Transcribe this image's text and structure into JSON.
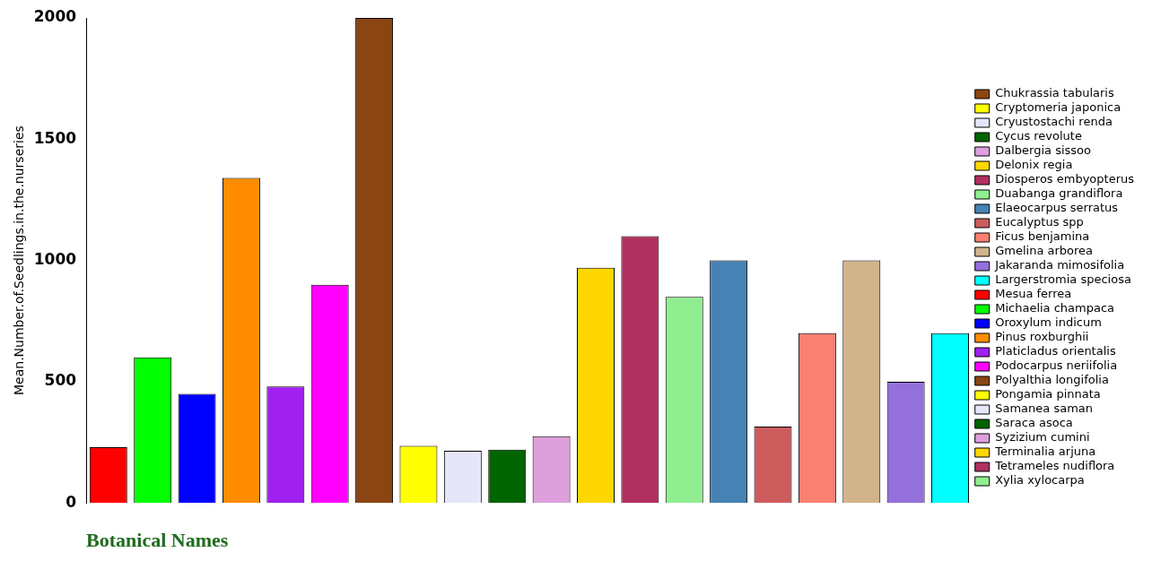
{
  "chart_data": {
    "type": "bar",
    "xlabel": "Botanical Names",
    "ylabel": "Mean.Number.of.Seedlings.in.the.nurseries",
    "categories": [
      null,
      null,
      null,
      null,
      null,
      null,
      null,
      null,
      null,
      null,
      null,
      null,
      null,
      null,
      null,
      null,
      null,
      null,
      null,
      null
    ],
    "ylim": [
      0,
      2000
    ],
    "yticks": [
      0,
      500,
      1000,
      1500,
      2000
    ],
    "grid": false,
    "legend": "right",
    "stacked": true,
    "series": [
      {
        "color": "#ff0000",
        "values": [
          230,
          null,
          null,
          null,
          null,
          null,
          null,
          null,
          null,
          null,
          null,
          null,
          null,
          null,
          null,
          null,
          null,
          null,
          null,
          null
        ]
      },
      {
        "color": "#00ff00",
        "values": [
          null,
          600,
          null,
          null,
          null,
          null,
          null,
          null,
          null,
          null,
          null,
          null,
          null,
          null,
          null,
          null,
          null,
          null,
          null,
          null
        ]
      },
      {
        "color": "#0000ff",
        "values": [
          null,
          null,
          450,
          null,
          null,
          null,
          null,
          null,
          null,
          null,
          null,
          null,
          null,
          null,
          null,
          null,
          null,
          null,
          null,
          null
        ]
      },
      {
        "color": "#ff8c00",
        "values": [
          null,
          null,
          null,
          1340,
          null,
          null,
          null,
          null,
          null,
          null,
          null,
          null,
          null,
          null,
          null,
          null,
          null,
          null,
          null,
          null
        ]
      },
      {
        "color": "#a020f0",
        "values": [
          null,
          null,
          null,
          null,
          480,
          null,
          null,
          null,
          null,
          null,
          null,
          null,
          null,
          null,
          null,
          null,
          null,
          null,
          null,
          null
        ]
      },
      {
        "color": "#ff00ff",
        "values": [
          null,
          null,
          null,
          null,
          null,
          900,
          null,
          null,
          null,
          null,
          null,
          null,
          null,
          null,
          null,
          null,
          null,
          null,
          null,
          null
        ]
      },
      {
        "name": "Chukrassia tabularis",
        "color": "#8b4513",
        "values": [
          null,
          null,
          null,
          null,
          null,
          null,
          2000,
          null,
          null,
          null,
          null,
          null,
          null,
          null,
          null,
          null,
          null,
          null,
          null,
          null
        ]
      },
      {
        "name": "Cryptomeria japonica",
        "color": "#ffff00",
        "values": [
          null,
          null,
          null,
          null,
          null,
          null,
          null,
          235,
          null,
          null,
          null,
          null,
          null,
          null,
          null,
          null,
          null,
          null,
          null,
          null
        ]
      },
      {
        "name": "Cryustostachi renda",
        "color": "#e6e6fa",
        "values": [
          null,
          null,
          null,
          null,
          null,
          null,
          null,
          null,
          215,
          null,
          null,
          null,
          null,
          null,
          null,
          null,
          null,
          null,
          null,
          null
        ]
      },
      {
        "name": "Cycus revolute",
        "color": "#006400",
        "values": [
          null,
          null,
          null,
          null,
          null,
          null,
          null,
          null,
          null,
          220,
          null,
          null,
          null,
          null,
          null,
          null,
          null,
          null,
          null,
          null
        ]
      },
      {
        "name": "Dalbergia sissoo",
        "color": "#dda0dd",
        "values": [
          null,
          null,
          null,
          null,
          null,
          null,
          null,
          null,
          null,
          null,
          275,
          null,
          null,
          null,
          null,
          null,
          null,
          null,
          null,
          null
        ]
      },
      {
        "name": "Delonix regia",
        "color": "#ffd700",
        "values": [
          null,
          null,
          null,
          null,
          null,
          null,
          null,
          null,
          null,
          null,
          null,
          970,
          null,
          null,
          null,
          null,
          null,
          null,
          null,
          null
        ]
      },
      {
        "name": "Diosperos embyopterus",
        "color": "#b03060",
        "values": [
          null,
          null,
          null,
          null,
          null,
          null,
          null,
          null,
          null,
          null,
          null,
          null,
          1100,
          null,
          null,
          null,
          null,
          null,
          null,
          null
        ]
      },
      {
        "name": "Duabanga grandiflora",
        "color": "#90ee90",
        "values": [
          null,
          null,
          null,
          null,
          null,
          null,
          null,
          null,
          null,
          null,
          null,
          null,
          null,
          850,
          null,
          null,
          null,
          null,
          null,
          null
        ]
      },
      {
        "name": "Elaeocarpus serratus",
        "color": "#4682b4",
        "values": [
          null,
          null,
          null,
          null,
          null,
          null,
          null,
          null,
          null,
          null,
          null,
          null,
          null,
          null,
          1000,
          null,
          null,
          null,
          null,
          null
        ]
      },
      {
        "name": "Eucalyptus spp",
        "color": "#cd5c5c",
        "values": [
          null,
          null,
          null,
          null,
          null,
          null,
          null,
          null,
          null,
          null,
          null,
          null,
          null,
          null,
          null,
          315,
          null,
          null,
          null,
          null
        ]
      },
      {
        "name": "Ficus benjamina",
        "color": "#fa8072",
        "values": [
          null,
          null,
          null,
          null,
          null,
          null,
          null,
          null,
          null,
          null,
          null,
          null,
          null,
          null,
          null,
          null,
          700,
          null,
          null,
          null
        ]
      },
      {
        "name": "Gmelina arborea",
        "color": "#d2b48c",
        "values": [
          null,
          null,
          null,
          null,
          null,
          null,
          null,
          null,
          null,
          null,
          null,
          null,
          null,
          null,
          null,
          null,
          null,
          1000,
          null,
          null
        ]
      },
      {
        "name": "Jakaranda mimosifolia",
        "color": "#9370db",
        "values": [
          null,
          null,
          null,
          null,
          null,
          null,
          null,
          null,
          null,
          null,
          null,
          null,
          null,
          null,
          null,
          null,
          null,
          null,
          500,
          null
        ]
      },
      {
        "name": "Largerstromia speciosa",
        "color": "#00ffff",
        "values": [
          null,
          null,
          null,
          null,
          null,
          null,
          null,
          null,
          null,
          null,
          null,
          null,
          null,
          null,
          null,
          null,
          null,
          null,
          null,
          700
        ]
      },
      {
        "name": "Mesua ferrea",
        "color": "#ff0000",
        "values": [
          null,
          null,
          null,
          null,
          null,
          null,
          null,
          null,
          null,
          null,
          null,
          null,
          null,
          null,
          null,
          null,
          null,
          null,
          null,
          null
        ]
      },
      {
        "name": "Michaelia champaca",
        "color": "#00ff00",
        "values": [
          null,
          null,
          null,
          null,
          null,
          null,
          null,
          null,
          null,
          null,
          null,
          null,
          null,
          null,
          null,
          null,
          null,
          null,
          null,
          null
        ]
      },
      {
        "name": "Oroxylum indicum",
        "color": "#0000ff",
        "values": [
          null,
          null,
          null,
          null,
          null,
          null,
          null,
          null,
          null,
          null,
          null,
          null,
          null,
          null,
          null,
          null,
          null,
          null,
          null,
          null
        ]
      },
      {
        "name": "Pinus roxburghii",
        "color": "#ff8c00",
        "values": [
          null,
          null,
          null,
          null,
          null,
          null,
          null,
          null,
          null,
          null,
          null,
          null,
          null,
          null,
          null,
          null,
          null,
          null,
          null,
          null
        ]
      },
      {
        "name": "Platicladus orientalis",
        "color": "#a020f0",
        "values": [
          null,
          null,
          null,
          null,
          null,
          null,
          null,
          null,
          null,
          null,
          null,
          null,
          null,
          null,
          null,
          null,
          null,
          null,
          null,
          null
        ]
      },
      {
        "name": "Podocarpus neriifolia",
        "color": "#ff00ff",
        "values": [
          null,
          null,
          null,
          null,
          null,
          null,
          null,
          null,
          null,
          null,
          null,
          null,
          null,
          null,
          null,
          null,
          null,
          null,
          null,
          null
        ]
      },
      {
        "name": "Polyalthia longifolia",
        "color": "#8b4513",
        "values": [
          null,
          null,
          null,
          null,
          null,
          null,
          null,
          null,
          null,
          null,
          null,
          null,
          null,
          null,
          null,
          null,
          null,
          null,
          null,
          null
        ]
      },
      {
        "name": "Pongamia pinnata",
        "color": "#ffff00",
        "values": [
          null,
          null,
          null,
          null,
          null,
          null,
          null,
          null,
          null,
          null,
          null,
          null,
          null,
          null,
          null,
          null,
          null,
          null,
          null,
          null
        ]
      },
      {
        "name": "Samanea saman",
        "color": "#e6e6fa",
        "values": [
          null,
          null,
          null,
          null,
          null,
          null,
          null,
          null,
          null,
          null,
          null,
          null,
          null,
          null,
          null,
          null,
          null,
          null,
          null,
          null
        ]
      },
      {
        "name": "Saraca asoca",
        "color": "#006400",
        "values": [
          null,
          null,
          null,
          null,
          null,
          null,
          null,
          null,
          null,
          null,
          null,
          null,
          null,
          null,
          null,
          null,
          null,
          null,
          null,
          null
        ]
      },
      {
        "name": "Syzizium cumini",
        "color": "#dda0dd",
        "values": [
          null,
          null,
          null,
          null,
          null,
          null,
          null,
          null,
          null,
          null,
          null,
          null,
          null,
          null,
          null,
          null,
          null,
          null,
          null,
          null
        ]
      },
      {
        "name": "Terminalia arjuna",
        "color": "#ffd700",
        "values": [
          null,
          null,
          null,
          null,
          null,
          null,
          null,
          null,
          null,
          null,
          null,
          null,
          null,
          null,
          null,
          null,
          null,
          null,
          null,
          null
        ]
      },
      {
        "name": "Tetrameles nudiflora",
        "color": "#b03060",
        "values": [
          null,
          null,
          null,
          null,
          null,
          null,
          null,
          null,
          null,
          null,
          null,
          null,
          null,
          null,
          null,
          null,
          null,
          null,
          null,
          null
        ]
      },
      {
        "name": "Xylia xylocarpa",
        "color": "#90ee90",
        "values": [
          null,
          null,
          null,
          null,
          null,
          null,
          null,
          null,
          null,
          null,
          null,
          null,
          null,
          null,
          null,
          null,
          null,
          null,
          null,
          null
        ]
      }
    ]
  }
}
